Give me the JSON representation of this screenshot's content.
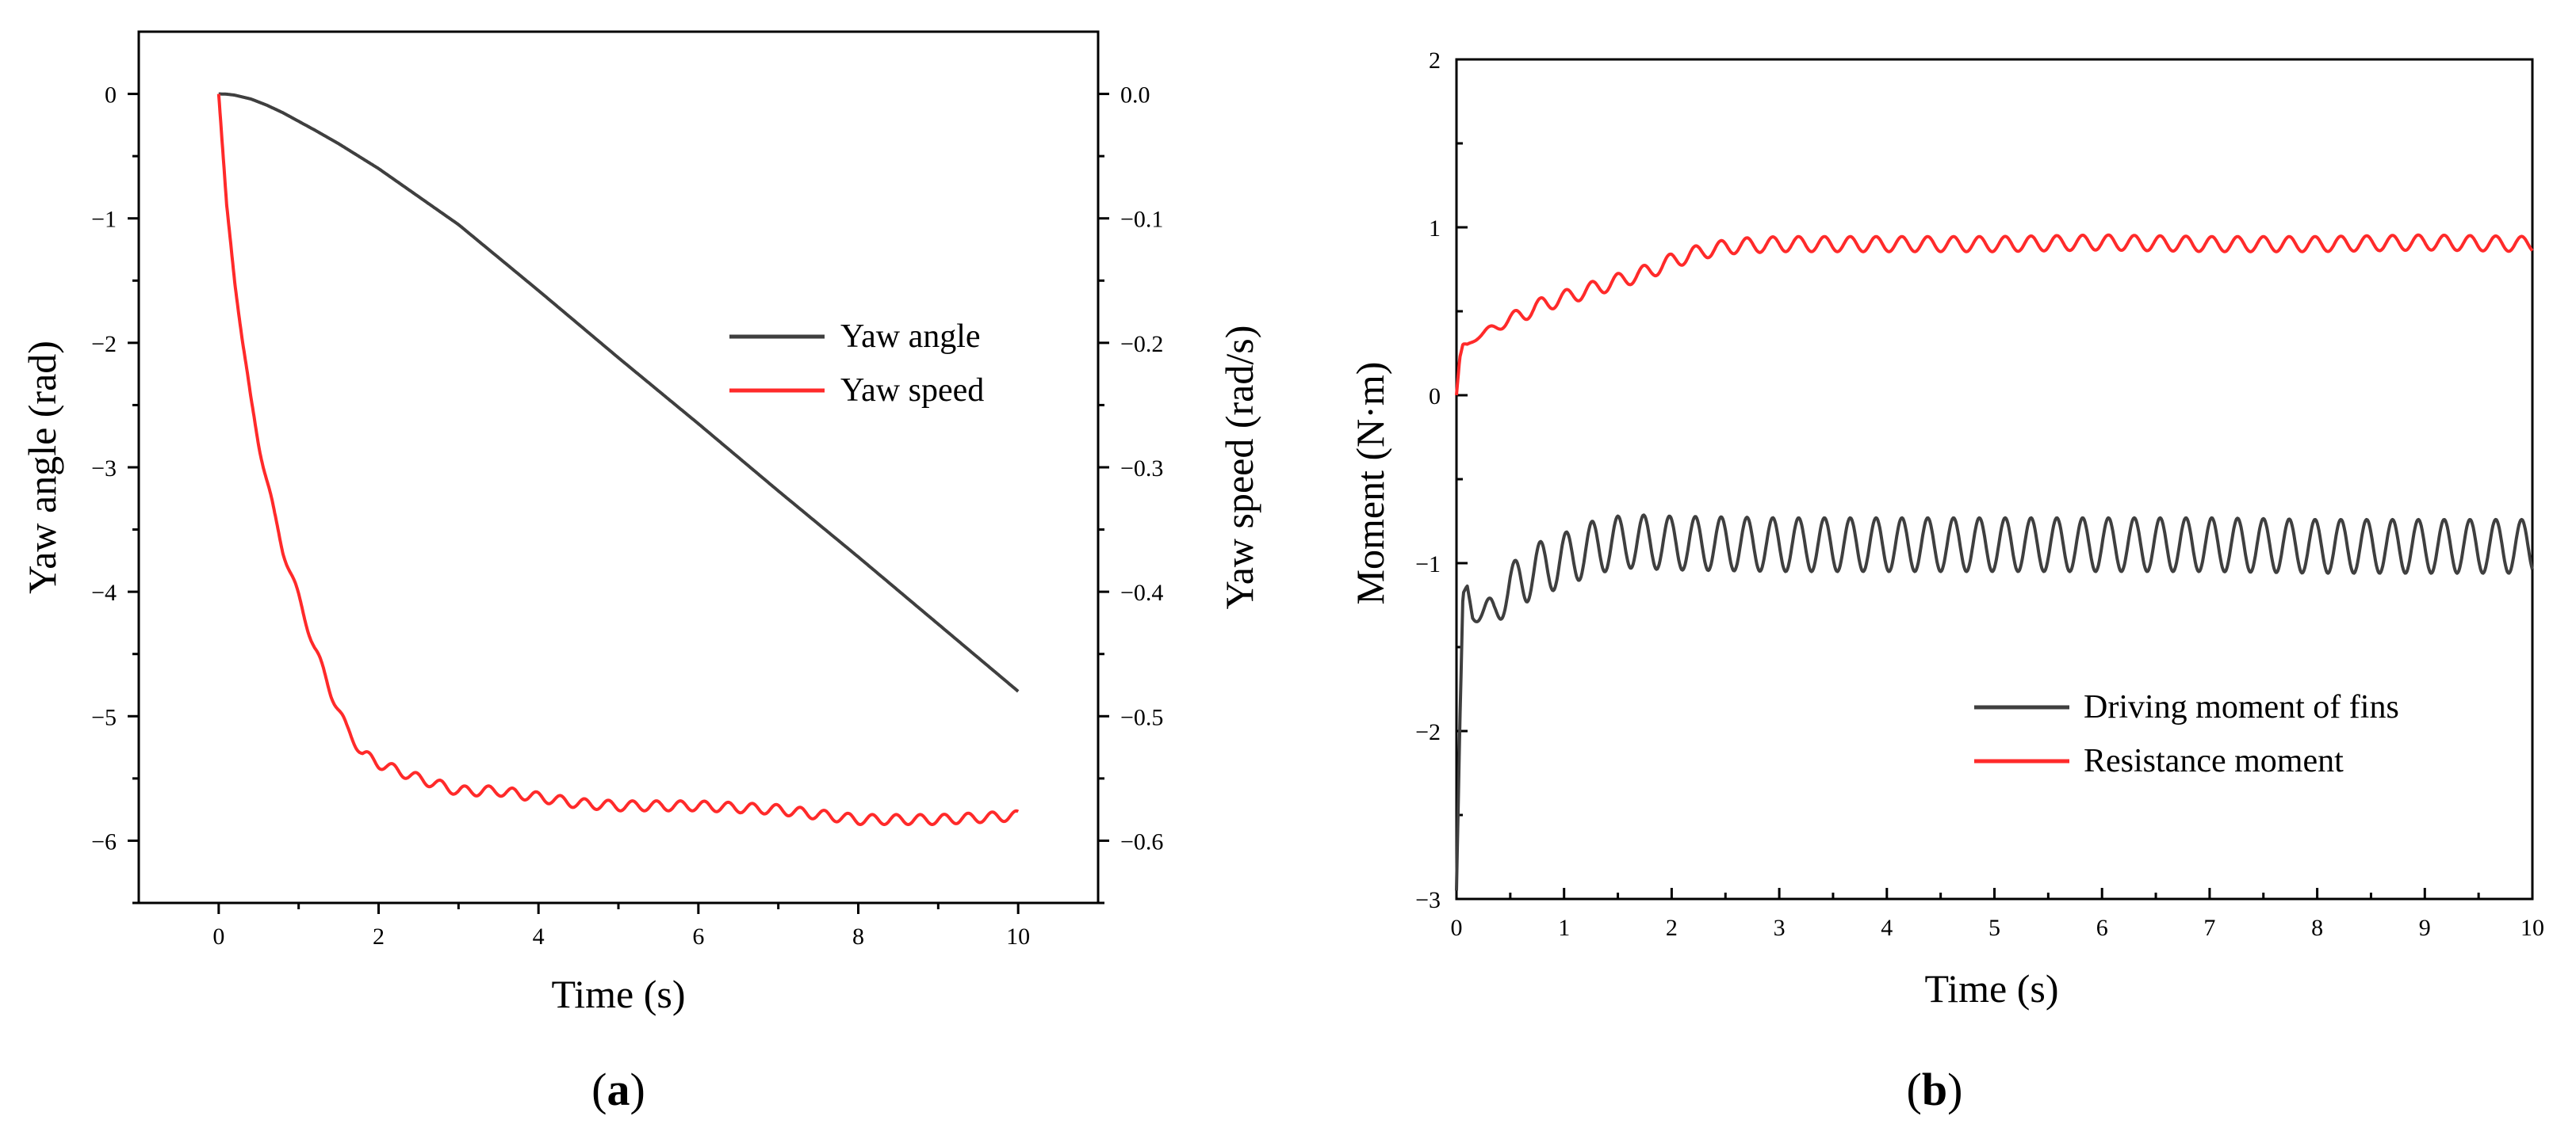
{
  "chart_data": [
    {
      "panel_label": "a",
      "type": "line",
      "xlabel": "Time (s)",
      "ylabel": "Yaw angle (rad)",
      "y2label": "Yaw speed (rad/s)",
      "xlim": [
        -1,
        11
      ],
      "ylim": [
        -6.5,
        0.5
      ],
      "y2lim": [
        -0.65,
        0.05
      ],
      "xticks": [
        0,
        2,
        4,
        6,
        8,
        10
      ],
      "yticks": [
        0,
        -1,
        -2,
        -3,
        -4,
        -5,
        -6
      ],
      "y2ticks": [
        0.0,
        -0.1,
        -0.2,
        -0.3,
        -0.4,
        -0.5,
        -0.6
      ],
      "legend_position": "middle-right",
      "series": [
        {
          "name": "Yaw angle",
          "axis": "left",
          "color": "#3f3f3f",
          "x": [
            0,
            0.1,
            0.2,
            0.4,
            0.6,
            0.8,
            1.0,
            1.2,
            1.5,
            2.0,
            3,
            4,
            5,
            6,
            7,
            8,
            9,
            10
          ],
          "y": [
            0,
            -0.002,
            -0.01,
            -0.04,
            -0.09,
            -0.15,
            -0.22,
            -0.29,
            -0.4,
            -0.6,
            -1.05,
            -1.58,
            -2.12,
            -2.65,
            -3.19,
            -3.72,
            -4.26,
            -4.8
          ]
        },
        {
          "name": "Yaw speed",
          "axis": "right",
          "color": "#ff2a2a",
          "x": [
            0,
            0.1,
            0.2,
            0.3,
            0.4,
            0.5,
            0.6,
            0.7,
            0.8,
            0.9,
            1.0,
            1.2,
            1.4,
            1.6,
            1.8,
            2.0,
            2.5,
            3,
            3.5,
            4,
            4.5,
            5,
            6,
            7,
            8,
            9,
            10
          ],
          "y": [
            0,
            -0.09,
            -0.15,
            -0.2,
            -0.245,
            -0.28,
            -0.31,
            -0.34,
            -0.365,
            -0.385,
            -0.405,
            -0.445,
            -0.48,
            -0.51,
            -0.53,
            -0.538,
            -0.55,
            -0.56,
            -0.56,
            -0.565,
            -0.57,
            -0.572,
            -0.572,
            -0.575,
            -0.583,
            -0.583,
            -0.58
          ],
          "ripple_amplitude": 0.004,
          "ripple_period": 0.3
        }
      ]
    },
    {
      "panel_label": "b",
      "type": "line",
      "xlabel": "Time (s)",
      "ylabel": "Moment (N·m)",
      "xlim": [
        0,
        10
      ],
      "ylim": [
        -3,
        2
      ],
      "xticks": [
        0,
        1,
        2,
        3,
        4,
        5,
        6,
        7,
        8,
        9,
        10
      ],
      "yticks": [
        2,
        1,
        0,
        -1,
        -2,
        -3
      ],
      "legend_position": "bottom-right",
      "series": [
        {
          "name": "Driving moment of fins",
          "color": "#3f3f3f",
          "x": [
            0,
            0.03,
            0.06,
            0.1,
            0.15,
            0.25,
            0.35,
            0.5,
            0.7,
            1.0,
            1.3,
            1.6,
            2.0,
            3,
            4,
            5,
            6,
            7,
            8,
            9,
            10
          ],
          "y": [
            -2.95,
            -2.0,
            -1.2,
            -1.15,
            -1.3,
            -1.3,
            -1.28,
            -1.15,
            -1.05,
            -0.98,
            -0.9,
            -0.87,
            -0.88,
            -0.89,
            -0.89,
            -0.89,
            -0.89,
            -0.89,
            -0.9,
            -0.9,
            -0.9
          ],
          "ripple_amplitude": 0.16,
          "ripple_period": 0.24
        },
        {
          "name": "Resistance moment",
          "color": "#ff2a2a",
          "x": [
            0,
            0.03,
            0.06,
            0.1,
            0.2,
            0.4,
            0.6,
            0.8,
            1.0,
            1.2,
            1.5,
            1.8,
            2.0,
            2.3,
            2.6,
            3,
            4,
            5,
            6,
            7,
            8,
            9,
            10
          ],
          "y": [
            0.0,
            0.22,
            0.3,
            0.3,
            0.35,
            0.42,
            0.48,
            0.54,
            0.58,
            0.62,
            0.68,
            0.74,
            0.8,
            0.86,
            0.89,
            0.9,
            0.9,
            0.9,
            0.91,
            0.9,
            0.9,
            0.91,
            0.9
          ],
          "ripple_amplitude": 0.045,
          "ripple_period": 0.24
        }
      ]
    }
  ]
}
